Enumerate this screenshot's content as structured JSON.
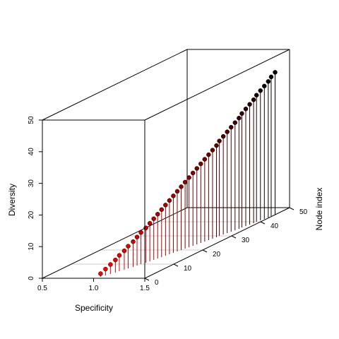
{
  "chart_data": {
    "type": "scatter",
    "plot_style": "3d-scatter-with-drop-lines",
    "title": "",
    "xlabel": "Specificity",
    "ylabel": "Node index",
    "zlabel": "Diversity",
    "xlim": [
      0.5,
      1.5
    ],
    "ylim": [
      0,
      50
    ],
    "zlim": [
      0,
      50
    ],
    "x_ticks": [
      "0.5",
      "1.0",
      "1.5"
    ],
    "y_ticks": [
      "0",
      "10",
      "20",
      "30",
      "40",
      "50"
    ],
    "z_ticks": [
      "0",
      "10",
      "20",
      "30",
      "40",
      "50"
    ],
    "grid": true,
    "color_gradient": [
      "#ff0000",
      "#000000"
    ],
    "series": [
      {
        "x": [
          1.04,
          1.06,
          1.08,
          1.1,
          1.11,
          1.13,
          1.14,
          1.16,
          1.17,
          1.18,
          1.2,
          1.21,
          1.22,
          1.23,
          1.24,
          1.25,
          1.26,
          1.27,
          1.28,
          1.29,
          1.3,
          1.31,
          1.32,
          1.33,
          1.34,
          1.35,
          1.36,
          1.37,
          1.38,
          1.38,
          1.39,
          1.4,
          1.41,
          1.42,
          1.43,
          1.43,
          1.44,
          1.45,
          1.46,
          1.46,
          1.47,
          1.48,
          1.49,
          1.49,
          1.5
        ],
        "y": [
          1,
          2,
          3,
          4,
          5,
          6,
          7,
          8,
          9,
          10,
          11,
          12,
          13,
          14,
          15,
          16,
          17,
          18,
          19,
          20,
          21,
          22,
          23,
          24,
          25,
          26,
          27,
          28,
          29,
          30,
          31,
          32,
          33,
          34,
          35,
          36,
          37,
          38,
          39,
          40,
          41,
          42,
          43,
          44,
          45
        ],
        "z": [
          1,
          2,
          3,
          4,
          5,
          6,
          7,
          8,
          9,
          10,
          11,
          12,
          13,
          14,
          15,
          16,
          17,
          18,
          19,
          20,
          21,
          22,
          23,
          24,
          25,
          26,
          27,
          28,
          29,
          30,
          31,
          32,
          33,
          34,
          35,
          36,
          37,
          38,
          39,
          40,
          41,
          42,
          43,
          44,
          45
        ]
      }
    ]
  }
}
